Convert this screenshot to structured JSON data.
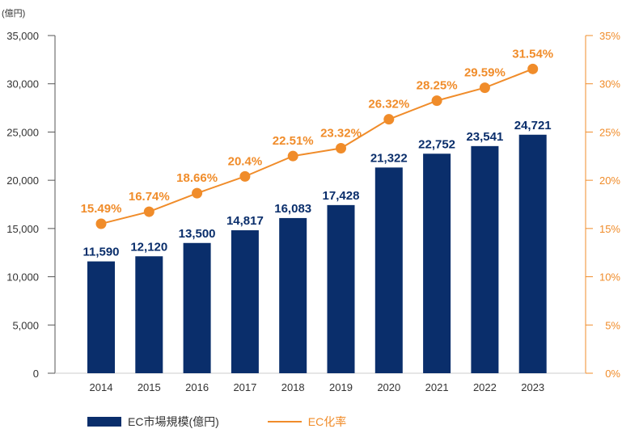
{
  "unit_label": "(億円)",
  "colors": {
    "bar": "#0a2e6b",
    "line": "#f08c2a",
    "axis_left": "#555555",
    "axis_right": "#f08c2a"
  },
  "legend": {
    "bar_label": "EC市場規模(億円)",
    "line_label": "EC化率"
  },
  "chart_data": {
    "type": "bar+line",
    "categories": [
      "2014",
      "2015",
      "2016",
      "2017",
      "2018",
      "2019",
      "2020",
      "2021",
      "2022",
      "2023"
    ],
    "series": [
      {
        "name": "EC市場規模(億円)",
        "type": "bar",
        "axis": "left",
        "values": [
          11590,
          12120,
          13500,
          14817,
          16083,
          17428,
          21322,
          22752,
          23541,
          24721
        ],
        "labels": [
          "11,590",
          "12,120",
          "13,500",
          "14,817",
          "16,083",
          "17,428",
          "21,322",
          "22,752",
          "23,541",
          "24,721"
        ]
      },
      {
        "name": "EC化率",
        "type": "line",
        "axis": "right",
        "values": [
          15.49,
          16.74,
          18.66,
          20.4,
          22.51,
          23.32,
          26.32,
          28.25,
          29.59,
          31.54
        ],
        "labels": [
          "15.49%",
          "16.74%",
          "18.66%",
          "20.4%",
          "22.51%",
          "23.32%",
          "26.32%",
          "28.25%",
          "29.59%",
          "31.54%"
        ]
      }
    ],
    "y_left": {
      "lim": [
        0,
        35000
      ],
      "ticks": [
        0,
        5000,
        10000,
        15000,
        20000,
        25000,
        30000,
        35000
      ],
      "tick_labels": [
        "0",
        "5,000",
        "10,000",
        "15,000",
        "20,000",
        "25,000",
        "30,000",
        "35,000"
      ]
    },
    "y_right": {
      "lim": [
        0,
        35
      ],
      "ticks": [
        0,
        5,
        10,
        15,
        20,
        25,
        30,
        35
      ],
      "tick_labels": [
        "0%",
        "5%",
        "10%",
        "15%",
        "20%",
        "25%",
        "30%",
        "35%"
      ]
    },
    "grid": false,
    "legend_position": "bottom-left"
  }
}
